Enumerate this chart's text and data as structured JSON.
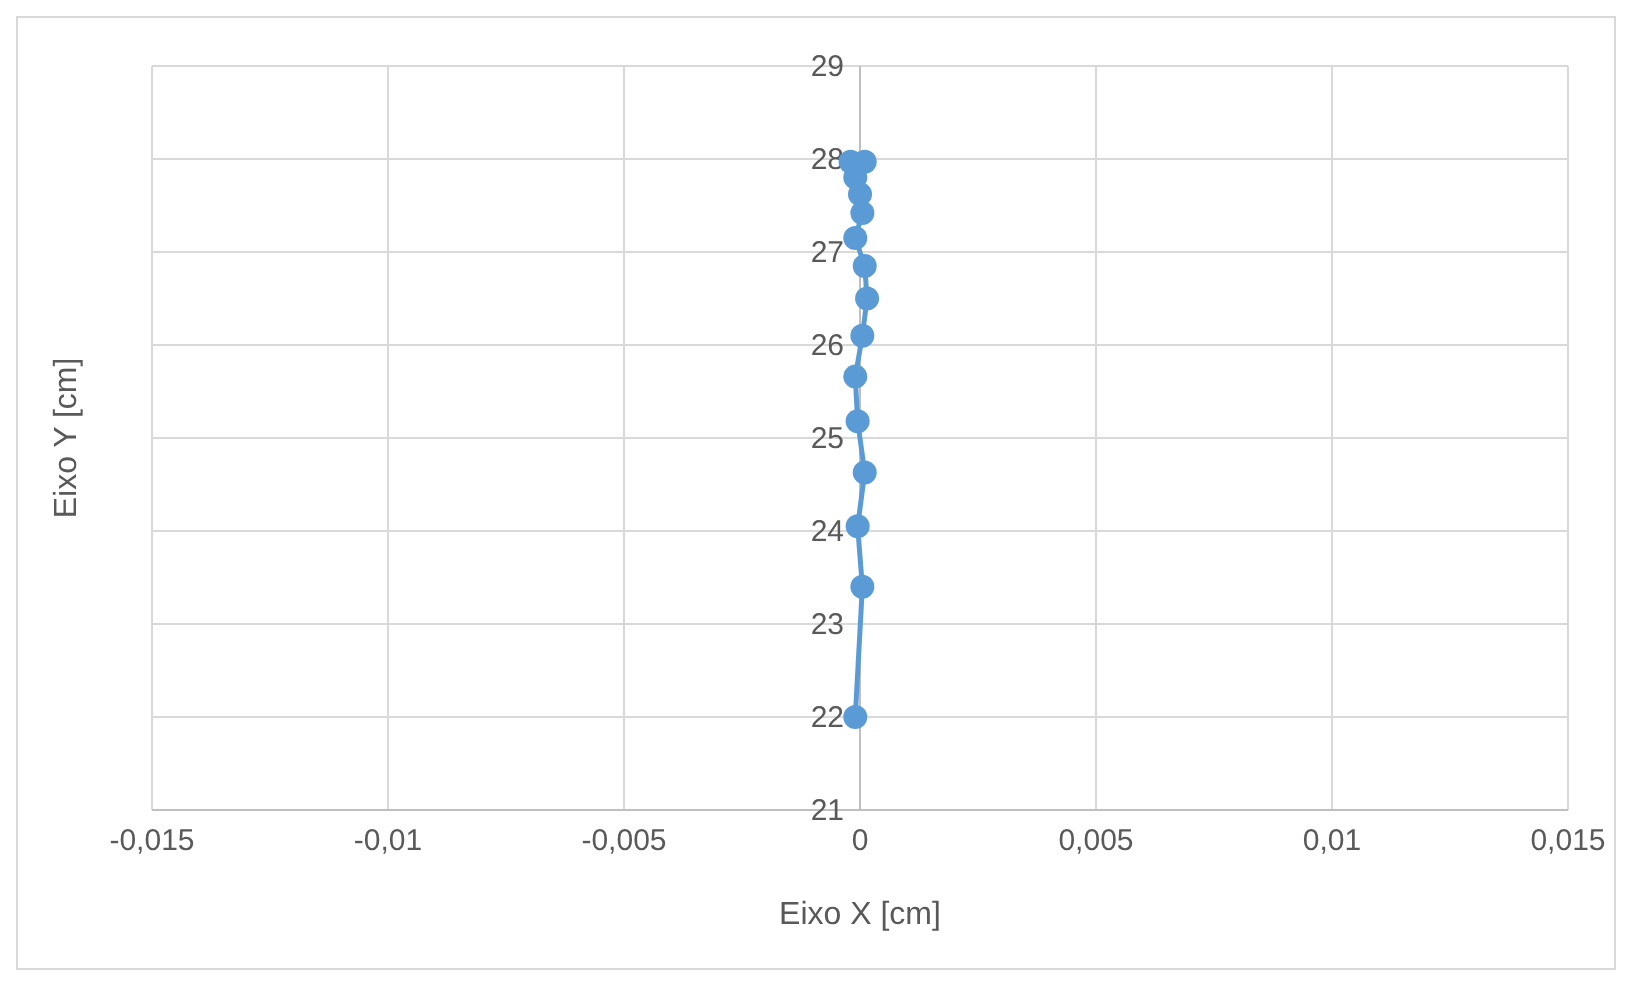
{
  "chart_data": {
    "type": "line",
    "xlabel": "Eixo X [cm]",
    "ylabel": "Eixo Y [cm]",
    "xlim": [
      -0.015,
      0.015
    ],
    "ylim": [
      21,
      29
    ],
    "xticks": [
      {
        "value": -0.015,
        "label": "-0,015"
      },
      {
        "value": -0.01,
        "label": "-0,01"
      },
      {
        "value": -0.005,
        "label": "-0,005"
      },
      {
        "value": 0,
        "label": "0"
      },
      {
        "value": 0.005,
        "label": "0,005"
      },
      {
        "value": 0.01,
        "label": "0,01"
      },
      {
        "value": 0.015,
        "label": "0,015"
      }
    ],
    "yticks": [
      21,
      22,
      23,
      24,
      25,
      26,
      27,
      28,
      29
    ],
    "grid": true,
    "marker": "circle",
    "line_style": "solid",
    "series": [
      {
        "color": "#5b9bd5",
        "x": [
          -0.0001,
          5e-05,
          -5e-05,
          0.0001,
          -5e-05,
          -0.0001,
          5e-05,
          0.00015,
          0.0001,
          -0.0001,
          5e-05,
          0,
          -0.0001,
          -0.0002,
          0.0001
        ],
        "values": [
          22.0,
          23.4,
          24.05,
          24.63,
          25.18,
          25.66,
          26.1,
          26.5,
          26.85,
          27.15,
          27.42,
          27.62,
          27.8,
          27.97,
          27.97
        ]
      }
    ]
  }
}
